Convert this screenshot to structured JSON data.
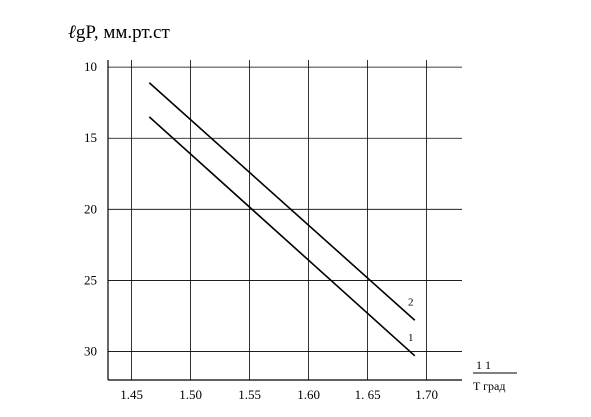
{
  "chart_data": {
    "type": "line",
    "ylabel_prefix": "ℓ",
    "ylabel_rest": "gP,  мм.рт.ст",
    "xlabel_fraction": "1  1",
    "xlabel_rest": "T град",
    "x_ticks": [
      "1.45",
      "1.50",
      "1.55",
      "1.60",
      "1. 65",
      "1.70"
    ],
    "x_tick_values": [
      1.45,
      1.5,
      1.55,
      1.6,
      1.65,
      1.7
    ],
    "y_ticks": [
      "10",
      "15",
      "20",
      "25",
      "30"
    ],
    "y_tick_values": [
      10,
      15,
      20,
      25,
      30
    ],
    "xlim": [
      1.43,
      1.73
    ],
    "ylim": [
      9.5,
      32
    ],
    "y_inverted": true,
    "grid": true,
    "series": [
      {
        "name": "1",
        "x": [
          1.465,
          1.69
        ],
        "y": [
          13.5,
          30.3
        ]
      },
      {
        "name": "2",
        "x": [
          1.465,
          1.69
        ],
        "y": [
          11.1,
          27.8
        ]
      }
    ]
  }
}
